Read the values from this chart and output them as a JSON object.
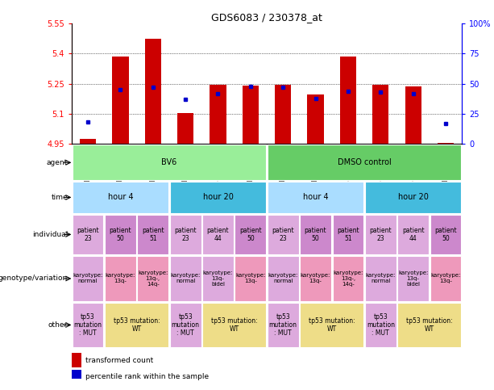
{
  "title": "GDS6083 / 230378_at",
  "samples": [
    "GSM1528449",
    "GSM1528455",
    "GSM1528457",
    "GSM1528447",
    "GSM1528451",
    "GSM1528453",
    "GSM1528450",
    "GSM1528456",
    "GSM1528458",
    "GSM1528448",
    "GSM1528452",
    "GSM1528454"
  ],
  "bar_values": [
    4.975,
    5.385,
    5.475,
    5.105,
    5.245,
    5.24,
    5.245,
    5.195,
    5.385,
    5.245,
    5.235,
    4.955
  ],
  "bar_base": 4.95,
  "percentile_values": [
    18,
    45,
    47,
    37,
    42,
    48,
    47,
    38,
    44,
    43,
    42,
    17
  ],
  "ylim": [
    4.95,
    5.55
  ],
  "yticks_left": [
    4.95,
    5.1,
    5.25,
    5.4,
    5.55
  ],
  "yticks_right": [
    0,
    25,
    50,
    75,
    100
  ],
  "bar_color": "#cc0000",
  "dot_color": "#0000cc",
  "agent_groups": [
    {
      "text": "BV6",
      "span": [
        0,
        6
      ],
      "color": "#99ee99"
    },
    {
      "text": "DMSO control",
      "span": [
        6,
        12
      ],
      "color": "#66cc66"
    }
  ],
  "time_groups": [
    {
      "text": "hour 4",
      "span": [
        0,
        3
      ],
      "color": "#aaddff"
    },
    {
      "text": "hour 20",
      "span": [
        3,
        6
      ],
      "color": "#44bbdd"
    },
    {
      "text": "hour 4",
      "span": [
        6,
        9
      ],
      "color": "#aaddff"
    },
    {
      "text": "hour 20",
      "span": [
        9,
        12
      ],
      "color": "#44bbdd"
    }
  ],
  "individual_cells": [
    {
      "text": "patient\n23",
      "color": "#ddaadd"
    },
    {
      "text": "patient\n50",
      "color": "#cc88cc"
    },
    {
      "text": "patient\n51",
      "color": "#cc88cc"
    },
    {
      "text": "patient\n23",
      "color": "#ddaadd"
    },
    {
      "text": "patient\n44",
      "color": "#ddaadd"
    },
    {
      "text": "patient\n50",
      "color": "#cc88cc"
    },
    {
      "text": "patient\n23",
      "color": "#ddaadd"
    },
    {
      "text": "patient\n50",
      "color": "#cc88cc"
    },
    {
      "text": "patient\n51",
      "color": "#cc88cc"
    },
    {
      "text": "patient\n23",
      "color": "#ddaadd"
    },
    {
      "text": "patient\n44",
      "color": "#ddaadd"
    },
    {
      "text": "patient\n50",
      "color": "#cc88cc"
    }
  ],
  "genotype_cells": [
    {
      "text": "karyotype:\nnormal",
      "color": "#ddaadd"
    },
    {
      "text": "karyotype:\n13q-",
      "color": "#ee99bb"
    },
    {
      "text": "karyotype:\n13q-,\n14q-",
      "color": "#ee99bb"
    },
    {
      "text": "karyotype:\nnormal",
      "color": "#ddaadd"
    },
    {
      "text": "karyotype:\n13q-\nbidel",
      "color": "#ddaadd"
    },
    {
      "text": "karyotype:\n13q-",
      "color": "#ee99bb"
    },
    {
      "text": "karyotype:\nnormal",
      "color": "#ddaadd"
    },
    {
      "text": "karyotype:\n13q-",
      "color": "#ee99bb"
    },
    {
      "text": "karyotype:\n13q-,\n14q-",
      "color": "#ee99bb"
    },
    {
      "text": "karyotype:\nnormal",
      "color": "#ddaadd"
    },
    {
      "text": "karyotype:\n13q-\nbidel",
      "color": "#ddaadd"
    },
    {
      "text": "karyotype:\n13q-",
      "color": "#ee99bb"
    }
  ],
  "other_groups": [
    {
      "text": "tp53\nmutation\n: MUT",
      "span": [
        0,
        1
      ],
      "color": "#ddaadd"
    },
    {
      "text": "tp53 mutation:\nWT",
      "span": [
        1,
        3
      ],
      "color": "#eedd88"
    },
    {
      "text": "tp53\nmutation\n: MUT",
      "span": [
        3,
        4
      ],
      "color": "#ddaadd"
    },
    {
      "text": "tp53 mutation:\nWT",
      "span": [
        4,
        6
      ],
      "color": "#eedd88"
    },
    {
      "text": "tp53\nmutation\n: MUT",
      "span": [
        6,
        7
      ],
      "color": "#ddaadd"
    },
    {
      "text": "tp53 mutation:\nWT",
      "span": [
        7,
        9
      ],
      "color": "#eedd88"
    },
    {
      "text": "tp53\nmutation\n: MUT",
      "span": [
        9,
        10
      ],
      "color": "#ddaadd"
    },
    {
      "text": "tp53 mutation:\nWT",
      "span": [
        10,
        12
      ],
      "color": "#eedd88"
    }
  ],
  "row_labels": [
    "agent",
    "time",
    "individual",
    "genotype/variation",
    "other"
  ],
  "bg_color": "#ffffff",
  "grid_color": "#000000",
  "label_col_color": "#ffffff"
}
